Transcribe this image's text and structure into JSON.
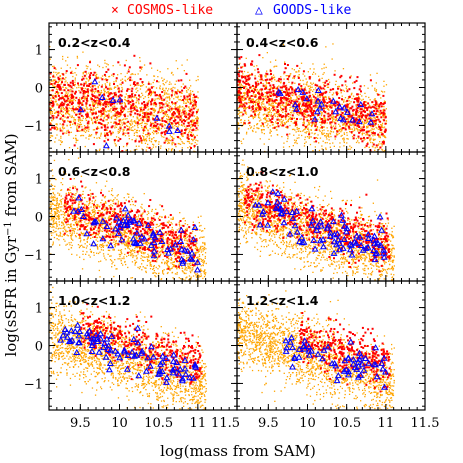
{
  "chart_data": {
    "type": "scatter",
    "xlabel": "log(mass from SAM)",
    "ylabel_parts": [
      "log(sSFR in Gyr",
      "−1",
      " from SAM)"
    ],
    "xlim": [
      9.1,
      11.5
    ],
    "ylim": [
      -1.7,
      1.7
    ],
    "xticks": [
      9.5,
      10,
      10.5,
      11,
      11.5
    ],
    "yticks": [
      -1,
      0,
      1
    ],
    "grid": false,
    "legend": {
      "placement": "top",
      "entries": [
        {
          "name": "COSMOS-like",
          "marker": "×",
          "color": "#ff0000"
        },
        {
          "name": "GOODS-like",
          "marker": "△",
          "color": "#0000ff"
        }
      ]
    },
    "colors": {
      "parent": "#ffa500",
      "cosmos": "#ff0000",
      "goods": "#0000ff"
    },
    "panels": [
      {
        "label": "0.2<z<0.4",
        "parent": {
          "x0": 9.1,
          "x1": 11.0,
          "y_at_min": -0.4,
          "slope": -0.25,
          "scatter": 0.55,
          "n": 1800
        },
        "cosmos": {
          "x0": 9.1,
          "x1": 11.0,
          "y_at_min": -0.25,
          "slope": -0.3,
          "scatter": 0.45,
          "n": 600
        },
        "goods": {
          "x0": 9.5,
          "x1": 10.9,
          "y_at_min": -0.3,
          "slope": -0.3,
          "scatter": 0.3,
          "n": 10
        }
      },
      {
        "label": "0.4<z<0.6",
        "parent": {
          "x0": 9.1,
          "x1": 11.0,
          "y_at_min": -0.3,
          "slope": -0.35,
          "scatter": 0.5,
          "n": 1800
        },
        "cosmos": {
          "x0": 9.1,
          "x1": 11.0,
          "y_at_min": 0.0,
          "slope": -0.45,
          "scatter": 0.35,
          "n": 700
        },
        "goods": {
          "x0": 9.6,
          "x1": 10.9,
          "y_at_min": 0.0,
          "slope": -0.45,
          "scatter": 0.25,
          "n": 25
        }
      },
      {
        "label": "0.6<z<0.8",
        "parent": {
          "x0": 9.1,
          "x1": 11.1,
          "y_at_min": 0.2,
          "slope": -0.7,
          "scatter": 0.45,
          "n": 2000
        },
        "cosmos": {
          "x0": 9.3,
          "x1": 11.0,
          "y_at_min": 0.35,
          "slope": -0.6,
          "scatter": 0.3,
          "n": 500
        },
        "goods": {
          "x0": 9.4,
          "x1": 11.0,
          "y_at_min": 0.25,
          "slope": -0.6,
          "scatter": 0.25,
          "n": 70
        }
      },
      {
        "label": "0.8<z<1.0",
        "parent": {
          "x0": 9.1,
          "x1": 11.1,
          "y_at_min": 0.3,
          "slope": -0.7,
          "scatter": 0.45,
          "n": 2000
        },
        "cosmos": {
          "x0": 9.2,
          "x1": 11.05,
          "y_at_min": 0.5,
          "slope": -0.65,
          "scatter": 0.3,
          "n": 550
        },
        "goods": {
          "x0": 9.3,
          "x1": 11.0,
          "y_at_min": 0.35,
          "slope": -0.65,
          "scatter": 0.25,
          "n": 90
        }
      },
      {
        "label": "1.0<z<1.2",
        "parent": {
          "x0": 9.1,
          "x1": 11.1,
          "y_at_min": 0.35,
          "slope": -0.7,
          "scatter": 0.45,
          "n": 2000
        },
        "cosmos": {
          "x0": 9.5,
          "x1": 11.05,
          "y_at_min": 0.7,
          "slope": -0.65,
          "scatter": 0.3,
          "n": 400
        },
        "goods": {
          "x0": 9.2,
          "x1": 11.0,
          "y_at_min": 0.35,
          "slope": -0.6,
          "scatter": 0.25,
          "n": 90
        }
      },
      {
        "label": "1.2<z<1.4",
        "parent": {
          "x0": 9.1,
          "x1": 11.1,
          "y_at_min": 0.4,
          "slope": -0.7,
          "scatter": 0.45,
          "n": 2000
        },
        "cosmos": {
          "x0": 9.9,
          "x1": 11.05,
          "y_at_min": 0.65,
          "slope": -0.6,
          "scatter": 0.3,
          "n": 350
        },
        "goods": {
          "x0": 9.7,
          "x1": 11.0,
          "y_at_min": 0.4,
          "slope": -0.6,
          "scatter": 0.22,
          "n": 60
        }
      }
    ]
  }
}
